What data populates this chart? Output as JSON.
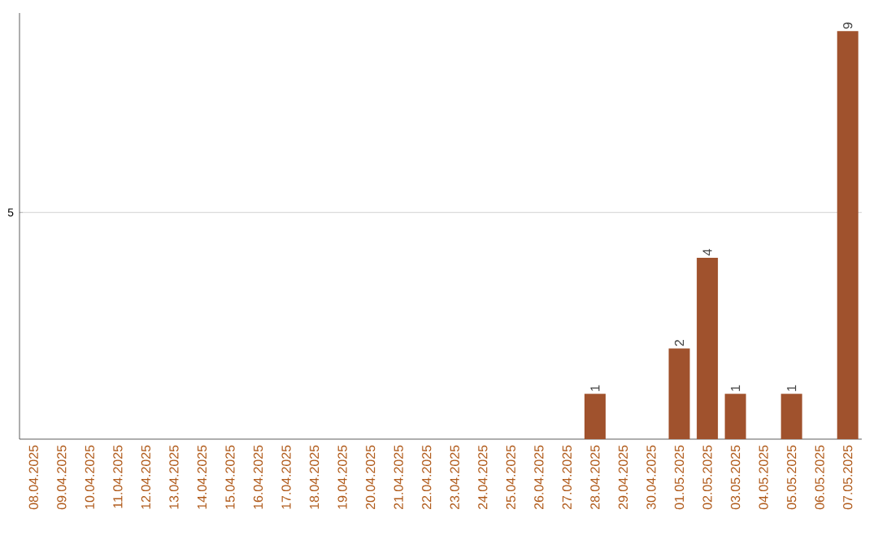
{
  "chart_data": {
    "type": "bar",
    "categories": [
      "08.04.2025",
      "09.04.2025",
      "10.04.2025",
      "11.04.2025",
      "12.04.2025",
      "13.04.2025",
      "14.04.2025",
      "15.04.2025",
      "16.04.2025",
      "17.04.2025",
      "18.04.2025",
      "19.04.2025",
      "20.04.2025",
      "21.04.2025",
      "22.04.2025",
      "23.04.2025",
      "24.04.2025",
      "25.04.2025",
      "26.04.2025",
      "27.04.2025",
      "28.04.2025",
      "29.04.2025",
      "30.04.2025",
      "01.05.2025",
      "02.05.2025",
      "03.05.2025",
      "04.05.2025",
      "05.05.2025",
      "06.05.2025",
      "07.05.2025"
    ],
    "values": [
      null,
      null,
      null,
      null,
      null,
      null,
      null,
      null,
      null,
      null,
      null,
      null,
      null,
      null,
      null,
      null,
      null,
      null,
      null,
      null,
      1,
      null,
      null,
      2,
      4,
      1,
      null,
      1,
      null,
      9
    ],
    "data_labels": true,
    "color": "#a0522d",
    "ylim": [
      0,
      9.4
    ],
    "yticks": [
      5
    ],
    "grid": "y"
  }
}
